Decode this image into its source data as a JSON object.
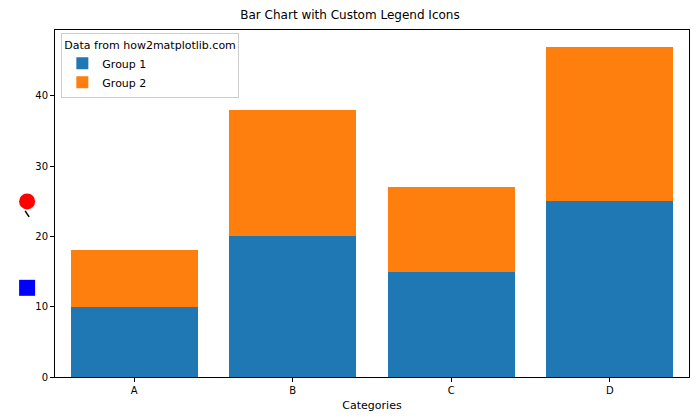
{
  "chart_data": {
    "type": "bar",
    "title": "Bar Chart with Custom Legend Icons",
    "x_label": "Categories",
    "categories": [
      "A",
      "B",
      "C",
      "D"
    ],
    "series": [
      {
        "name": "Group 1",
        "color": "#1f77b4",
        "values": [
          10,
          20,
          15,
          25
        ]
      },
      {
        "name": "Group 2",
        "color": "#ff7f0e",
        "values": [
          8,
          18,
          12,
          22
        ]
      }
    ],
    "stacked": true,
    "ylim": [
      0,
      49.35
    ],
    "yticks": [
      0,
      10,
      20,
      30,
      40
    ],
    "legend": "upper left",
    "legend_title": "Data from how2matplotlib.com",
    "grid": false
  }
}
